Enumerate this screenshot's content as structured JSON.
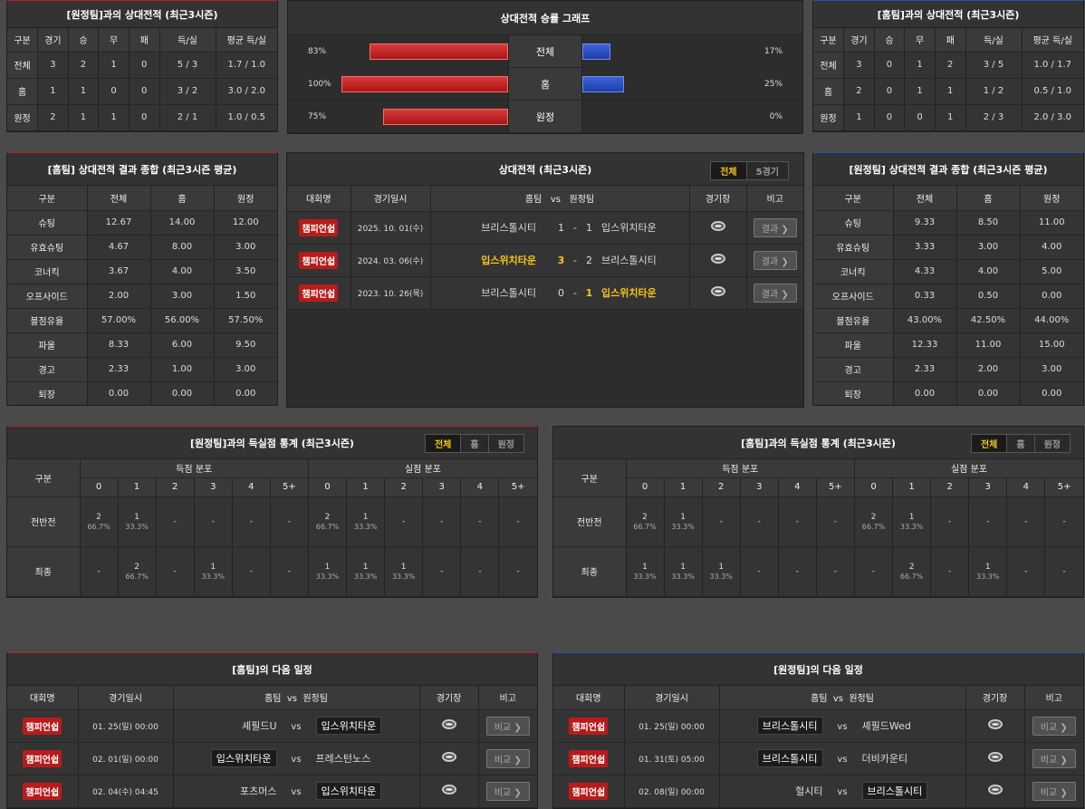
{
  "common": {
    "h_gubun": "구분",
    "h_games": "경기",
    "h_w": "승",
    "h_d": "무",
    "h_l": "패",
    "h_gs": "득/실",
    "h_avg": "평균 득/실",
    "h_total": "전체",
    "h_home": "홈",
    "h_away": "원정",
    "h_comp": "대회명",
    "h_date": "경기일시",
    "h_hometeam": "홈팀",
    "vs": "vs",
    "h_awayteam": "원정팀",
    "h_stadium": "경기장",
    "h_note": "비고",
    "result_btn": "결과 ❯",
    "compare_btn": "비교 ❯",
    "comp_name": "챔피언쉽",
    "score_dist": "득점 분포",
    "concede_dist": "실점 분포",
    "half": "전반전",
    "final": "최종",
    "seg_all": "전체",
    "seg_5": "5경기",
    "seg_home": "홈",
    "seg_away": "원정"
  },
  "h2h_left": {
    "title": "[원정팀]과의 상대전적 (최근3시즌)",
    "rows": [
      {
        "label": "전체",
        "g": "3",
        "w": "2",
        "d": "1",
        "l": "0",
        "gs": "5 / 3",
        "avg": "1.7 / 1.0"
      },
      {
        "label": "홈",
        "g": "1",
        "w": "1",
        "d": "0",
        "l": "0",
        "gs": "3 / 2",
        "avg": "3.0 / 2.0"
      },
      {
        "label": "원정",
        "g": "2",
        "w": "1",
        "d": "1",
        "l": "0",
        "gs": "2 / 1",
        "avg": "1.0 / 0.5"
      }
    ]
  },
  "graph": {
    "title": "상대전적 승률 그래프",
    "rows": [
      {
        "label": "전체",
        "left_text": "83%",
        "left": 83,
        "right_text": "17%",
        "right": 17
      },
      {
        "label": "홈",
        "left_text": "100%",
        "left": 100,
        "right_text": "25%",
        "right": 25
      },
      {
        "label": "원정",
        "left_text": "75%",
        "left": 75,
        "right_text": "0%",
        "right": 0
      }
    ]
  },
  "h2h_right": {
    "title": "[홈팀]과의 상대전적 (최근3시즌)",
    "rows": [
      {
        "label": "전체",
        "g": "3",
        "w": "0",
        "d": "1",
        "l": "2",
        "gs": "3 / 5",
        "avg": "1.0 / 1.7"
      },
      {
        "label": "홈",
        "g": "2",
        "w": "0",
        "d": "1",
        "l": "1",
        "gs": "1 / 2",
        "avg": "0.5 / 1.0"
      },
      {
        "label": "원정",
        "g": "1",
        "w": "0",
        "d": "0",
        "l": "1",
        "gs": "2 / 3",
        "avg": "2.0 / 3.0"
      }
    ]
  },
  "home_summary": {
    "title": "[홈팀] 상대전적 결과 종합 (최근3시즌 평균)",
    "rows": [
      {
        "label": "슈팅",
        "t": "12.67",
        "h": "14.00",
        "a": "12.00"
      },
      {
        "label": "유효슈팅",
        "t": "4.67",
        "h": "8.00",
        "a": "3.00"
      },
      {
        "label": "코너킥",
        "t": "3.67",
        "h": "4.00",
        "a": "3.50"
      },
      {
        "label": "오프사이드",
        "t": "2.00",
        "h": "3.00",
        "a": "1.50"
      },
      {
        "label": "볼점유율",
        "t": "57.00%",
        "h": "56.00%",
        "a": "57.50%"
      },
      {
        "label": "파울",
        "t": "8.33",
        "h": "6.00",
        "a": "9.50"
      },
      {
        "label": "경고",
        "t": "2.33",
        "h": "1.00",
        "a": "3.00"
      },
      {
        "label": "퇴장",
        "t": "0.00",
        "h": "0.00",
        "a": "0.00"
      }
    ]
  },
  "away_summary": {
    "title": "[원정팀] 상대전적 결과 종합 (최근3시즌 평균)",
    "rows": [
      {
        "label": "슈팅",
        "t": "9.33",
        "h": "8.50",
        "a": "11.00"
      },
      {
        "label": "유효슈팅",
        "t": "3.33",
        "h": "3.00",
        "a": "4.00"
      },
      {
        "label": "코너킥",
        "t": "4.33",
        "h": "4.00",
        "a": "5.00"
      },
      {
        "label": "오프사이드",
        "t": "0.33",
        "h": "0.50",
        "a": "0.00"
      },
      {
        "label": "볼점유율",
        "t": "43.00%",
        "h": "42.50%",
        "a": "44.00%"
      },
      {
        "label": "파울",
        "t": "12.33",
        "h": "11.00",
        "a": "15.00"
      },
      {
        "label": "경고",
        "t": "2.33",
        "h": "2.00",
        "a": "3.00"
      },
      {
        "label": "퇴장",
        "t": "0.00",
        "h": "0.00",
        "a": "0.00"
      }
    ]
  },
  "matches": {
    "title": "상대전적 (최근3시즌)",
    "rows": [
      {
        "date": "2025. 10. 01(수)",
        "home": "브리스톨시티",
        "hs": "1",
        "as": "1",
        "away": "입스위치타운",
        "win": ""
      },
      {
        "date": "2024. 03. 06(수)",
        "home": "입스위치타운",
        "hs": "3",
        "as": "2",
        "away": "브리스톨시티",
        "win": "home"
      },
      {
        "date": "2023. 10. 26(목)",
        "home": "브리스톨시티",
        "hs": "0",
        "as": "1",
        "away": "입스위치타운",
        "win": "away"
      }
    ]
  },
  "goals_left": {
    "title": "[원정팀]과의 득실점 통계 (최근3시즌)",
    "cols": [
      "0",
      "1",
      "2",
      "3",
      "4",
      "5+"
    ],
    "half": [
      {
        "c": "2",
        "p": "66.7%"
      },
      {
        "c": "1",
        "p": "33.3%"
      },
      {
        "c": "-"
      },
      {
        "c": "-"
      },
      {
        "c": "-"
      },
      {
        "c": "-"
      },
      {
        "c": "2",
        "p": "66.7%"
      },
      {
        "c": "1",
        "p": "33.3%"
      },
      {
        "c": "-"
      },
      {
        "c": "-"
      },
      {
        "c": "-"
      },
      {
        "c": "-"
      }
    ],
    "final": [
      {
        "c": "-"
      },
      {
        "c": "2",
        "p": "66.7%"
      },
      {
        "c": "-"
      },
      {
        "c": "1",
        "p": "33.3%"
      },
      {
        "c": "-"
      },
      {
        "c": "-"
      },
      {
        "c": "1",
        "p": "33.3%"
      },
      {
        "c": "1",
        "p": "33.3%"
      },
      {
        "c": "1",
        "p": "33.3%"
      },
      {
        "c": "-"
      },
      {
        "c": "-"
      },
      {
        "c": "-"
      }
    ]
  },
  "goals_right": {
    "title": "[홈팀]과의 득실점 통계 (최근3시즌)",
    "cols": [
      "0",
      "1",
      "2",
      "3",
      "4",
      "5+"
    ],
    "half": [
      {
        "c": "2",
        "p": "66.7%"
      },
      {
        "c": "1",
        "p": "33.3%"
      },
      {
        "c": "-"
      },
      {
        "c": "-"
      },
      {
        "c": "-"
      },
      {
        "c": "-"
      },
      {
        "c": "2",
        "p": "66.7%"
      },
      {
        "c": "1",
        "p": "33.3%"
      },
      {
        "c": "-"
      },
      {
        "c": "-"
      },
      {
        "c": "-"
      },
      {
        "c": "-"
      }
    ],
    "final": [
      {
        "c": "1",
        "p": "33.3%"
      },
      {
        "c": "1",
        "p": "33.3%"
      },
      {
        "c": "1",
        "p": "33.3%"
      },
      {
        "c": "-"
      },
      {
        "c": "-"
      },
      {
        "c": "-"
      },
      {
        "c": "-"
      },
      {
        "c": "2",
        "p": "66.7%"
      },
      {
        "c": "-"
      },
      {
        "c": "1",
        "p": "33.3%"
      },
      {
        "c": "-"
      },
      {
        "c": "-"
      }
    ]
  },
  "next_home": {
    "title": "[홈팀]의 다음 일정",
    "rows": [
      {
        "date": "01. 25(일) 00:00",
        "home": "셰필드U",
        "away": "입스위치타운",
        "box": "away"
      },
      {
        "date": "02. 01(일) 00:00",
        "home": "입스위치타운",
        "away": "프레스턴노스",
        "box": "home"
      },
      {
        "date": "02. 04(수) 04:45",
        "home": "포츠머스",
        "away": "입스위치타운",
        "box": "away"
      }
    ]
  },
  "next_away": {
    "title": "[원정팀]의 다음 일정",
    "rows": [
      {
        "date": "01. 25(일) 00:00",
        "home": "브리스톨시티",
        "away": "셰필드Wed",
        "box": "home"
      },
      {
        "date": "01. 31(토) 05:00",
        "home": "브리스톨시티",
        "away": "더비카운티",
        "box": "home"
      },
      {
        "date": "02. 08(일) 00:00",
        "home": "헐시티",
        "away": "브리스톨시티",
        "box": "away"
      }
    ]
  }
}
